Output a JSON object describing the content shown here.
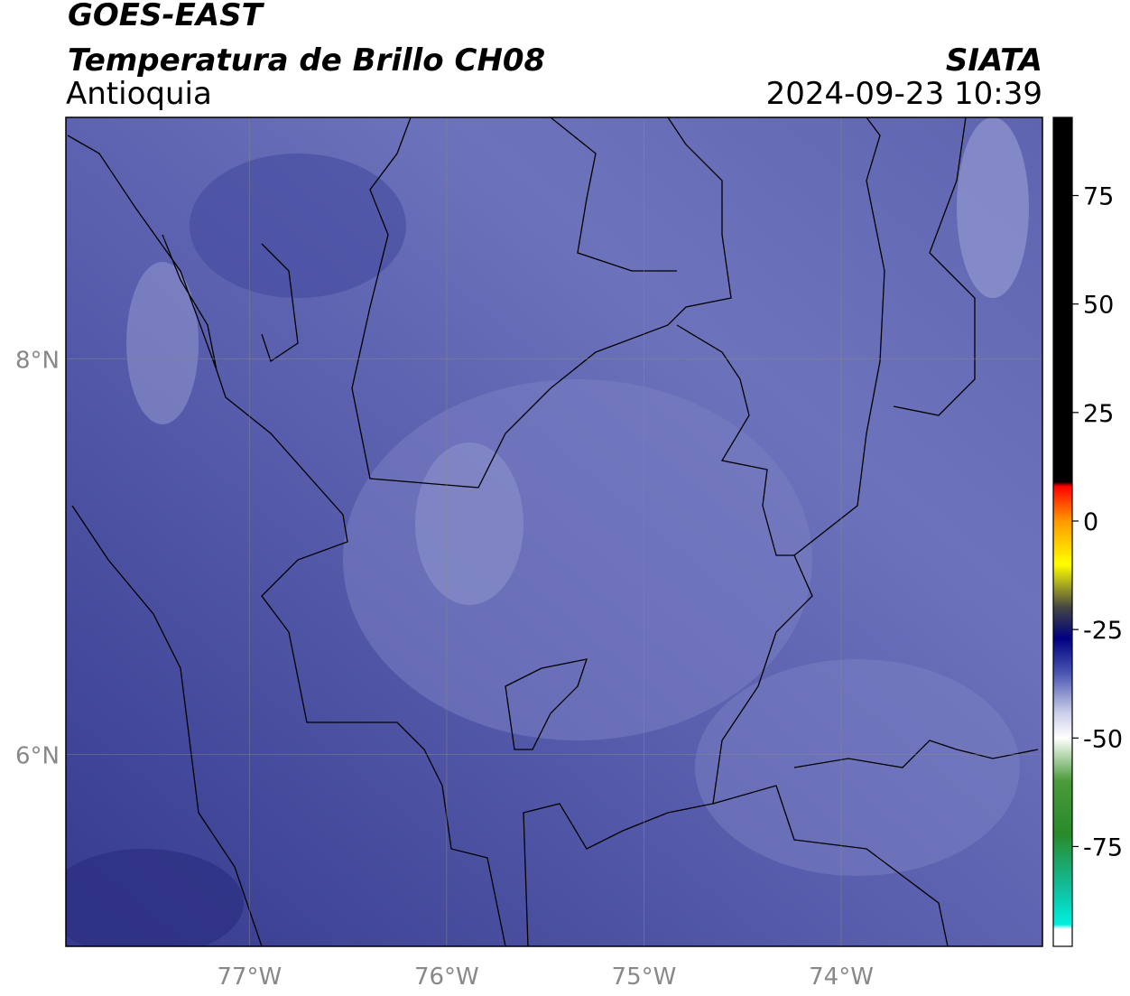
{
  "header": {
    "title": "GOES-EAST",
    "subtitle": "Temperatura de Brillo CH08",
    "region": "Antioquia",
    "source": "SIATA",
    "datetime": "2024-09-23 10:39"
  },
  "map": {
    "xlim": [
      -77.93,
      -72.98
    ],
    "ylim": [
      5.03,
      9.22
    ],
    "xticks": [
      {
        "value": -77,
        "label": "77°W"
      },
      {
        "value": -76,
        "label": "76°W"
      },
      {
        "value": -75,
        "label": "75°W"
      },
      {
        "value": -74,
        "label": "74°W"
      }
    ],
    "yticks": [
      {
        "value": 6,
        "label": "6°N"
      },
      {
        "value": 8,
        "label": "8°N"
      }
    ],
    "grid": true
  },
  "colorbar": {
    "range": [
      -98,
      93
    ],
    "ticks": [
      75,
      50,
      25,
      0,
      -25,
      -50,
      -75
    ],
    "stops": [
      {
        "value": 93,
        "color": "#000000"
      },
      {
        "value": 9,
        "color": "#000000"
      },
      {
        "value": 8,
        "color": "#ff0000"
      },
      {
        "value": 0,
        "color": "#ff9900"
      },
      {
        "value": -10,
        "color": "#ffff00"
      },
      {
        "value": -20,
        "color": "#444444"
      },
      {
        "value": -27,
        "color": "#000080"
      },
      {
        "value": -35,
        "color": "#4a55b0"
      },
      {
        "value": -44,
        "color": "#c8cce8"
      },
      {
        "value": -50,
        "color": "#ffffff"
      },
      {
        "value": -60,
        "color": "#4a9a3a"
      },
      {
        "value": -72,
        "color": "#2a8a2a"
      },
      {
        "value": -85,
        "color": "#10c0a0"
      },
      {
        "value": -93,
        "color": "#00f0e0"
      },
      {
        "value": -94,
        "color": "#ffffff"
      },
      {
        "value": -98,
        "color": "#ffffff"
      }
    ]
  }
}
